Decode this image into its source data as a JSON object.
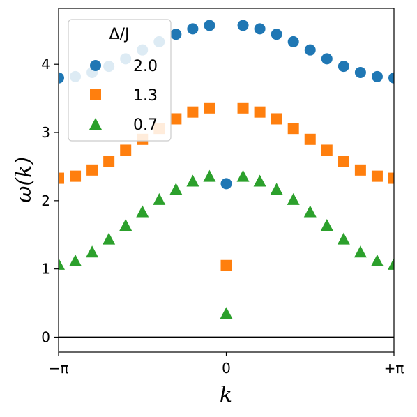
{
  "chart_data": {
    "type": "scatter",
    "xlabel": "k",
    "ylabel": "ω(k)",
    "xlim": [
      -3.14159,
      3.14159
    ],
    "ylim": [
      -0.22,
      4.82
    ],
    "x_ticks": [
      {
        "value": -3.14159,
        "label": "−π"
      },
      {
        "value": 0,
        "label": "0"
      },
      {
        "value": 3.14159,
        "label": "+π"
      }
    ],
    "y_ticks": [
      {
        "value": 0,
        "label": "0"
      },
      {
        "value": 1,
        "label": "1"
      },
      {
        "value": 2,
        "label": "2"
      },
      {
        "value": 3,
        "label": "3"
      },
      {
        "value": 4,
        "label": "4"
      }
    ],
    "hline": 0,
    "legend": {
      "title": "Δ/J",
      "position": "upper-left"
    },
    "series": [
      {
        "name": "2.0",
        "marker": "circle",
        "color": "#1f77b4",
        "points": [
          [
            -3.14159,
            3.8
          ],
          [
            -2.82743,
            3.82
          ],
          [
            -2.51327,
            3.88
          ],
          [
            -2.19911,
            3.97
          ],
          [
            -1.88496,
            4.08
          ],
          [
            -1.5708,
            4.21
          ],
          [
            -1.25664,
            4.33
          ],
          [
            -0.94248,
            4.44
          ],
          [
            -0.62832,
            4.52
          ],
          [
            -0.31416,
            4.57
          ],
          [
            0,
            2.25
          ],
          [
            0.31416,
            4.57
          ],
          [
            0.62832,
            4.52
          ],
          [
            0.94248,
            4.44
          ],
          [
            1.25664,
            4.33
          ],
          [
            1.5708,
            4.21
          ],
          [
            1.88496,
            4.08
          ],
          [
            2.19911,
            3.97
          ],
          [
            2.51327,
            3.88
          ],
          [
            2.82743,
            3.82
          ],
          [
            3.14159,
            3.8
          ]
        ]
      },
      {
        "name": "1.3",
        "marker": "square",
        "color": "#ff7f0e",
        "points": [
          [
            -3.14159,
            2.33
          ],
          [
            -2.82743,
            2.36
          ],
          [
            -2.51327,
            2.45
          ],
          [
            -2.19911,
            2.58
          ],
          [
            -1.88496,
            2.74
          ],
          [
            -1.5708,
            2.9
          ],
          [
            -1.25664,
            3.06
          ],
          [
            -0.94248,
            3.2
          ],
          [
            -0.62832,
            3.3
          ],
          [
            -0.31416,
            3.36
          ],
          [
            0,
            1.05
          ],
          [
            0.31416,
            3.36
          ],
          [
            0.62832,
            3.3
          ],
          [
            0.94248,
            3.2
          ],
          [
            1.25664,
            3.06
          ],
          [
            1.5708,
            2.9
          ],
          [
            1.88496,
            2.74
          ],
          [
            2.19911,
            2.58
          ],
          [
            2.51327,
            2.45
          ],
          [
            2.82743,
            2.36
          ],
          [
            3.14159,
            2.33
          ]
        ]
      },
      {
        "name": "0.7",
        "marker": "triangle",
        "color": "#2ca02c",
        "points": [
          [
            -3.14159,
            1.07
          ],
          [
            -2.82743,
            1.12
          ],
          [
            -2.51327,
            1.25
          ],
          [
            -2.19911,
            1.44
          ],
          [
            -1.88496,
            1.64
          ],
          [
            -1.5708,
            1.84
          ],
          [
            -1.25664,
            2.02
          ],
          [
            -0.94248,
            2.17
          ],
          [
            -0.62832,
            2.29
          ],
          [
            -0.31416,
            2.36
          ],
          [
            0,
            0.35
          ],
          [
            0.31416,
            2.36
          ],
          [
            0.62832,
            2.29
          ],
          [
            0.94248,
            2.17
          ],
          [
            1.25664,
            2.02
          ],
          [
            1.5708,
            1.84
          ],
          [
            1.88496,
            1.64
          ],
          [
            2.19911,
            1.44
          ],
          [
            2.51327,
            1.25
          ],
          [
            2.82743,
            1.12
          ],
          [
            3.14159,
            1.07
          ]
        ]
      }
    ]
  }
}
